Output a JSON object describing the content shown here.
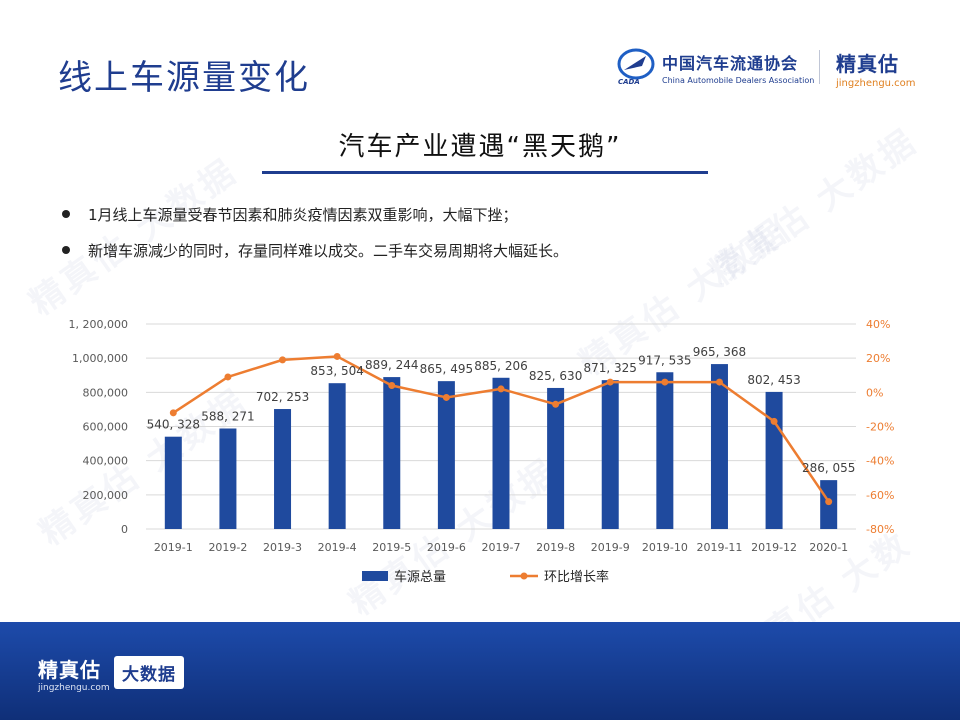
{
  "page": {
    "title": "线上车源量变化",
    "cada_name": "中国汽车流通协会",
    "cada_en": "China Automobile Dealers Association",
    "cada_abbr": "CADA",
    "brand_name": "精真估",
    "brand_url": "jingzhengu.com",
    "subtitle": "汽车产业遭遇“黑天鹅”",
    "bullets": [
      "1月线上车源量受春节因素和肺炎疫情因素双重影响，大幅下挫；",
      "新增车源减少的同时，存量同样难以成交。二手车交易周期将大幅延长。"
    ],
    "watermark": "精真估 大数据",
    "footer": {
      "brand_name": "精真估",
      "brand_url": "jingzhengu.com",
      "badge": "大数据"
    }
  },
  "colors": {
    "bar": "#1f4a9e",
    "line": "#ed7d31",
    "title": "#1f3d8f",
    "axis_text": "#595959",
    "right_axis_text": "#ed7d31"
  },
  "chart_data": {
    "type": "bar",
    "categories": [
      "2019-1",
      "2019-2",
      "2019-3",
      "2019-4",
      "2019-5",
      "2019-6",
      "2019-7",
      "2019-8",
      "2019-9",
      "2019-10",
      "2019-11",
      "2019-12",
      "2020-1"
    ],
    "series": [
      {
        "name": "车源总量",
        "type": "bar",
        "axis": "left",
        "values": [
          540328,
          588271,
          702253,
          853504,
          889244,
          865495,
          885206,
          825630,
          871325,
          917535,
          965368,
          802453,
          286055
        ],
        "data_labels": [
          "540, 328",
          "588, 271",
          "702, 253",
          "853, 504",
          "889, 244",
          "865, 495",
          "885, 206",
          "825, 630",
          "871, 325",
          "917, 535",
          "965, 368",
          "802, 453",
          "286, 055"
        ]
      },
      {
        "name": "环比增长率",
        "type": "line",
        "axis": "right",
        "values": [
          -12,
          9,
          19,
          21,
          4,
          -3,
          2,
          -7,
          6,
          6,
          6,
          -17,
          -64
        ]
      }
    ],
    "ylim_left": [
      0,
      1200000
    ],
    "ylim_right": [
      -80,
      40
    ],
    "left_ticks": [
      "0",
      "200,000",
      "400,000",
      "600,000",
      "800,000",
      "1,000,000",
      "1, 200,000"
    ],
    "right_ticks": [
      "-80%",
      "-60%",
      "-40%",
      "-20%",
      "0%",
      "20%",
      "40%"
    ],
    "grid": true,
    "legend_position": "bottom"
  }
}
